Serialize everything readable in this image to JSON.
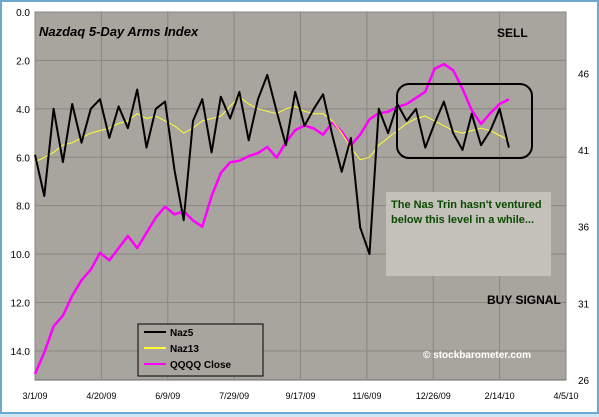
{
  "chart_data": {
    "type": "line",
    "title": "Nazdaq 5-Day Arms Index",
    "plot_background": "#a8a49e",
    "grid": {
      "horizontal": true,
      "vertical": true
    },
    "x_dates": [
      "3/1/09",
      "3/8/09",
      "3/15/09",
      "3/22/09",
      "3/29/09",
      "4/5/09",
      "4/12/09",
      "4/19/09",
      "4/26/09",
      "5/3/09",
      "5/10/09",
      "5/17/09",
      "5/24/09",
      "5/31/09",
      "6/7/09",
      "6/14/09",
      "6/21/09",
      "6/28/09",
      "7/5/09",
      "7/12/09",
      "7/19/09",
      "7/26/09",
      "8/2/09",
      "8/9/09",
      "8/16/09",
      "8/23/09",
      "8/30/09",
      "9/6/09",
      "9/13/09",
      "9/20/09",
      "9/27/09",
      "10/4/09",
      "10/11/09",
      "10/18/09",
      "10/25/09",
      "11/1/09",
      "11/8/09",
      "11/15/09",
      "11/22/09",
      "11/29/09",
      "12/6/09",
      "12/13/09",
      "12/20/09",
      "12/27/09",
      "1/3/10",
      "1/10/10",
      "1/17/10",
      "1/24/10",
      "1/31/10",
      "2/7/10",
      "2/14/10",
      "2/21/10"
    ],
    "x_ticks": [
      "3/1/09",
      "4/20/09",
      "6/9/09",
      "7/29/09",
      "9/17/09",
      "11/6/09",
      "12/26/09",
      "2/14/10",
      "4/5/10"
    ],
    "x_range": [
      "3/1/09",
      "4/5/10"
    ],
    "y_left": {
      "ticks": [
        "0.0",
        "2.0",
        "4.0",
        "6.0",
        "8.0",
        "10.0",
        "12.0",
        "14.0"
      ],
      "range": [
        0,
        15.2
      ],
      "reversed": true
    },
    "y_right": {
      "ticks": [
        "26",
        "31",
        "36",
        "41",
        "46"
      ],
      "range": [
        26,
        50
      ]
    },
    "series": [
      {
        "name": "Naz5",
        "color": "#000000",
        "axis": "left",
        "values": [
          5.9,
          7.6,
          4.0,
          6.2,
          3.8,
          5.4,
          4.0,
          3.6,
          5.2,
          3.9,
          4.8,
          3.2,
          5.6,
          4.0,
          3.7,
          6.5,
          8.6,
          4.5,
          3.6,
          5.8,
          3.5,
          4.4,
          3.3,
          5.3,
          3.6,
          2.6,
          4.1,
          5.5,
          3.3,
          4.7,
          4.0,
          3.4,
          5.1,
          6.6,
          5.2,
          8.9,
          10.0,
          4.0,
          5.0,
          3.8,
          4.5,
          4.0,
          5.6,
          4.6,
          3.7,
          5.0,
          5.7,
          4.2,
          5.5,
          4.9,
          4.0,
          5.6
        ]
      },
      {
        "name": "Naz13",
        "color": "#ffff33",
        "axis": "left",
        "values": [
          6.2,
          6.0,
          5.8,
          5.5,
          5.4,
          5.2,
          5.0,
          4.9,
          4.8,
          4.6,
          4.5,
          4.2,
          4.4,
          4.3,
          4.5,
          4.7,
          5.0,
          4.8,
          4.5,
          4.4,
          4.3,
          3.9,
          3.5,
          3.8,
          4.0,
          4.1,
          4.2,
          4.0,
          3.9,
          4.1,
          4.2,
          4.2,
          4.5,
          5.0,
          5.6,
          6.1,
          6.0,
          5.5,
          5.2,
          4.9,
          4.6,
          4.4,
          4.3,
          4.5,
          4.7,
          4.9,
          5.0,
          4.9,
          4.8,
          4.9,
          5.1,
          5.3
        ]
      },
      {
        "name": "QQQQ Close",
        "color": "#ff00ff",
        "axis": "right",
        "values": [
          26.4,
          27.8,
          29.5,
          30.2,
          31.5,
          32.5,
          33.2,
          34.3,
          33.8,
          34.6,
          35.4,
          34.6,
          35.6,
          36.6,
          37.3,
          36.8,
          37.0,
          36.4,
          36.0,
          38.0,
          39.5,
          40.2,
          40.3,
          40.6,
          40.8,
          41.2,
          40.5,
          41.5,
          42.3,
          42.6,
          42.4,
          42.0,
          42.8,
          42.2,
          41.3,
          42.0,
          43.0,
          43.4,
          43.5,
          43.8,
          44.0,
          44.4,
          44.8,
          46.3,
          46.6,
          46.2,
          45.0,
          43.6,
          42.7,
          43.4,
          44.0,
          44.3
        ]
      }
    ],
    "annotations": {
      "sell_label": "SELL",
      "buy_label": "BUY SIGNAL",
      "note": "The Nas Trin hasn't ventured below this level in a while...",
      "watermark": "© stockbarometer.com"
    }
  }
}
